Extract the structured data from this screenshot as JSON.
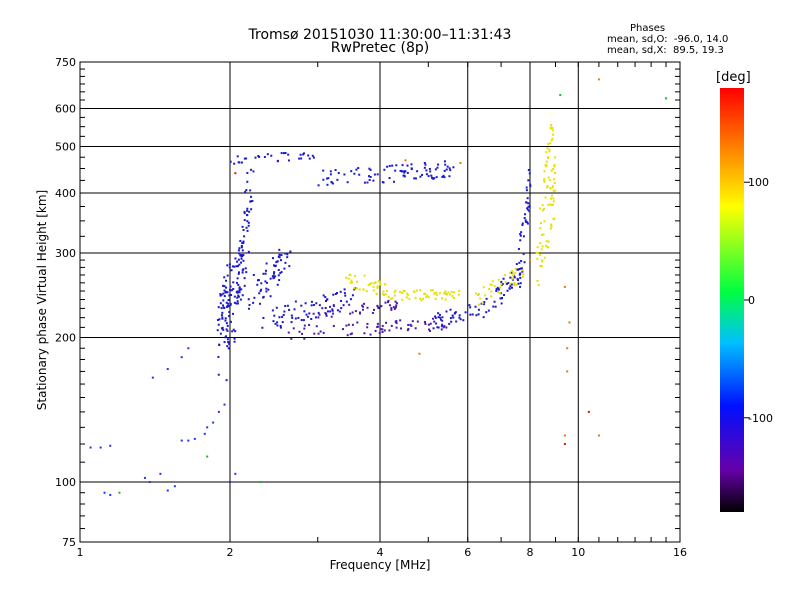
{
  "chart_data": {
    "type": "scatter",
    "title": "Tromsø 20151030 11:30:00–11:31:43",
    "subtitle": "RwPretec (8p)",
    "xlabel": "Frequency [MHz]",
    "ylabel": "Stationary phase Virtual Height [km]",
    "x_scale": "log",
    "y_scale": "log",
    "xlim": [
      1,
      16
    ],
    "ylim": [
      75,
      750
    ],
    "x_ticks": [
      1,
      2,
      4,
      6,
      8,
      10,
      16
    ],
    "x_tick_labels": [
      "1",
      "2",
      "4",
      "6",
      "8",
      "10",
      "16"
    ],
    "y_ticks": [
      75,
      100,
      200,
      300,
      400,
      500,
      600,
      750
    ],
    "y_tick_labels": [
      "75",
      "100",
      "200",
      "300",
      "400",
      "500",
      "600",
      "750"
    ],
    "grid": true,
    "stats": {
      "heading": "Phases",
      "line_o": "mean, sd,O:  -96.0, 14.0",
      "line_x": "mean, sd,X:  89.5, 19.3"
    },
    "colorbar": {
      "label": "[deg]",
      "range": [
        -180,
        180
      ],
      "ticks": [
        100,
        0,
        -100
      ],
      "tick_labels": [
        "100",
        "0",
        "-100"
      ]
    },
    "series": [
      {
        "color": "#2233ee",
        "points": [
          [
            1.05,
            118
          ],
          [
            1.1,
            118
          ],
          [
            1.15,
            119
          ],
          [
            1.12,
            95
          ],
          [
            1.15,
            94
          ],
          [
            1.35,
            102
          ],
          [
            1.38,
            100
          ],
          [
            1.45,
            104
          ],
          [
            1.5,
            96
          ],
          [
            1.55,
            98
          ],
          [
            1.6,
            122
          ],
          [
            1.65,
            122
          ],
          [
            1.7,
            123
          ],
          [
            1.78,
            126
          ],
          [
            1.8,
            130
          ],
          [
            1.85,
            133
          ],
          [
            1.4,
            165
          ],
          [
            1.5,
            172
          ],
          [
            1.6,
            182
          ],
          [
            1.65,
            190
          ],
          [
            1.9,
            140
          ],
          [
            1.95,
            145
          ],
          [
            2.0,
            100
          ],
          [
            2.05,
            104
          ]
        ]
      },
      {
        "color": "#1a1acc",
        "stroke": [
          {
            "from": [
              1.92,
              180
            ],
            "to": [
              1.98,
              270
            ],
            "n": 60,
            "jitter": [
              0.05,
              30
            ]
          },
          {
            "from": [
              2.0,
              190
            ],
            "to": [
              2.1,
              300
            ],
            "n": 60,
            "jitter": [
              0.05,
              30
            ]
          },
          {
            "from": [
              2.1,
              260
            ],
            "to": [
              2.2,
              420
            ],
            "n": 50,
            "jitter": [
              0.04,
              40
            ]
          },
          {
            "from": [
              2.2,
              240
            ],
            "to": [
              2.6,
              290
            ],
            "n": 60,
            "jitter": [
              0.06,
              20
            ]
          },
          {
            "from": [
              2.4,
              220
            ],
            "to": [
              3.6,
              245
            ],
            "n": 70,
            "jitter": [
              0.08,
              12
            ]
          },
          {
            "from": [
              3.0,
              430
            ],
            "to": [
              5.6,
              450
            ],
            "n": 90,
            "jitter": [
              0.1,
              18
            ]
          },
          {
            "from": [
              2.0,
              470
            ],
            "to": [
              3.0,
              480
            ],
            "n": 30,
            "jitter": [
              0.08,
              10
            ]
          },
          {
            "from": [
              5.0,
              215
            ],
            "to": [
              6.5,
              230
            ],
            "n": 40,
            "jitter": [
              0.05,
              8
            ]
          },
          {
            "from": [
              6.5,
              230
            ],
            "to": [
              7.8,
              280
            ],
            "n": 45,
            "jitter": [
              0.05,
              15
            ]
          },
          {
            "from": [
              7.6,
              270
            ],
            "to": [
              8.0,
              420
            ],
            "n": 40,
            "jitter": [
              0.03,
              40
            ]
          }
        ]
      },
      {
        "color": "#4a1aaa",
        "stroke": [
          {
            "from": [
              2.6,
              205
            ],
            "to": [
              5.5,
              215
            ],
            "n": 70,
            "jitter": [
              0.08,
              7
            ]
          },
          {
            "from": [
              3.0,
              225
            ],
            "to": [
              4.4,
              235
            ],
            "n": 40,
            "jitter": [
              0.08,
              6
            ]
          }
        ]
      },
      {
        "color": "#e8e000",
        "stroke": [
          {
            "from": [
              3.4,
              265
            ],
            "to": [
              4.2,
              250
            ],
            "n": 40,
            "jitter": [
              0.06,
              10
            ]
          },
          {
            "from": [
              4.2,
              245
            ],
            "to": [
              5.8,
              245
            ],
            "n": 50,
            "jitter": [
              0.06,
              6
            ]
          },
          {
            "from": [
              6.2,
              240
            ],
            "to": [
              7.8,
              275
            ],
            "n": 40,
            "jitter": [
              0.05,
              10
            ]
          },
          {
            "from": [
              8.2,
              280
            ],
            "to": [
              9.0,
              420
            ],
            "n": 60,
            "jitter": [
              0.03,
              60
            ]
          },
          {
            "from": [
              8.5,
              420
            ],
            "to": [
              8.9,
              560
            ],
            "n": 25,
            "jitter": [
              0.02,
              30
            ]
          }
        ]
      },
      {
        "color": "#f07800",
        "points": [
          [
            4.8,
            185
          ],
          [
            9.4,
            255
          ],
          [
            9.6,
            215
          ],
          [
            9.5,
            190
          ],
          [
            9.5,
            170
          ],
          [
            9.4,
            125
          ],
          [
            11.0,
            690
          ],
          [
            11.0,
            125
          ],
          [
            4.5,
            468
          ],
          [
            5.8,
            462
          ],
          [
            8.0,
            290
          ]
        ]
      },
      {
        "color": "#10c010",
        "points": [
          [
            1.2,
            95
          ],
          [
            1.8,
            113
          ],
          [
            2.3,
            100
          ],
          [
            9.2,
            640
          ],
          [
            15.0,
            630
          ]
        ]
      },
      {
        "color": "#e01010",
        "points": [
          [
            9.4,
            120
          ],
          [
            10.5,
            140
          ],
          [
            2.05,
            440
          ]
        ]
      }
    ]
  }
}
